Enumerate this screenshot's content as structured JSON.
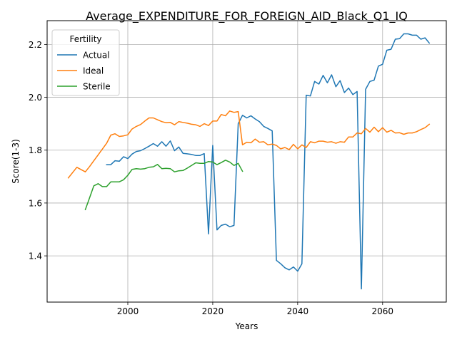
{
  "chart_data": {
    "type": "line",
    "title": "Average_EXPENDITURE_FOR_FOREIGN_AID_Black_Q1_IQ",
    "xlabel": "Years",
    "ylabel": "Score(1-3)",
    "xlim": [
      1981,
      2075
    ],
    "ylim": [
      1.225,
      2.29
    ],
    "xticks": [
      2000,
      2020,
      2040,
      2060
    ],
    "yticks": [
      1.4,
      1.6,
      1.8,
      2.0,
      2.2
    ],
    "grid": true,
    "legend": {
      "title": "Fertility",
      "placement": "top-left"
    },
    "series": [
      {
        "name": "Actual",
        "color": "#1f77b4",
        "points": [
          [
            1995,
            1.745
          ],
          [
            1996,
            1.745
          ],
          [
            1997,
            1.76
          ],
          [
            1998,
            1.758
          ],
          [
            1999,
            1.775
          ],
          [
            2000,
            1.768
          ],
          [
            2001,
            1.785
          ],
          [
            2002,
            1.795
          ],
          [
            2003,
            1.798
          ],
          [
            2004,
            1.806
          ],
          [
            2005,
            1.815
          ],
          [
            2006,
            1.825
          ],
          [
            2007,
            1.815
          ],
          [
            2008,
            1.832
          ],
          [
            2009,
            1.815
          ],
          [
            2010,
            1.835
          ],
          [
            2011,
            1.798
          ],
          [
            2012,
            1.812
          ],
          [
            2013,
            1.788
          ],
          [
            2014,
            1.786
          ],
          [
            2015,
            1.784
          ],
          [
            2016,
            1.78
          ],
          [
            2017,
            1.78
          ],
          [
            2018,
            1.787
          ],
          [
            2019,
            1.483
          ],
          [
            2020,
            1.818
          ],
          [
            2021,
            1.498
          ],
          [
            2022,
            1.515
          ],
          [
            2023,
            1.52
          ],
          [
            2024,
            1.51
          ],
          [
            2025,
            1.515
          ],
          [
            2026,
            1.9
          ],
          [
            2027,
            1.932
          ],
          [
            2028,
            1.922
          ],
          [
            2029,
            1.93
          ],
          [
            2030,
            1.918
          ],
          [
            2031,
            1.908
          ],
          [
            2032,
            1.89
          ],
          [
            2033,
            1.882
          ],
          [
            2034,
            1.873
          ],
          [
            2035,
            1.383
          ],
          [
            2036,
            1.37
          ],
          [
            2037,
            1.355
          ],
          [
            2038,
            1.347
          ],
          [
            2039,
            1.358
          ],
          [
            2040,
            1.342
          ],
          [
            2041,
            1.37
          ],
          [
            2042,
            2.008
          ],
          [
            2043,
            2.005
          ],
          [
            2044,
            2.06
          ],
          [
            2045,
            2.05
          ],
          [
            2046,
            2.083
          ],
          [
            2047,
            2.055
          ],
          [
            2048,
            2.085
          ],
          [
            2049,
            2.04
          ],
          [
            2050,
            2.063
          ],
          [
            2051,
            2.018
          ],
          [
            2052,
            2.035
          ],
          [
            2053,
            2.01
          ],
          [
            2054,
            2.022
          ],
          [
            2055,
            1.275
          ],
          [
            2056,
            2.03
          ],
          [
            2057,
            2.06
          ],
          [
            2058,
            2.065
          ],
          [
            2059,
            2.118
          ],
          [
            2060,
            2.125
          ],
          [
            2061,
            2.178
          ],
          [
            2062,
            2.182
          ],
          [
            2063,
            2.22
          ],
          [
            2064,
            2.222
          ],
          [
            2065,
            2.24
          ],
          [
            2066,
            2.24
          ],
          [
            2067,
            2.235
          ],
          [
            2068,
            2.235
          ],
          [
            2069,
            2.22
          ],
          [
            2070,
            2.225
          ],
          [
            2071,
            2.205
          ]
        ]
      },
      {
        "name": "Ideal",
        "color": "#ff7f0e",
        "points": [
          [
            1986,
            1.695
          ],
          [
            1988,
            1.735
          ],
          [
            1990,
            1.718
          ],
          [
            1991,
            1.738
          ],
          [
            1992,
            1.76
          ],
          [
            1993,
            1.782
          ],
          [
            1994,
            1.804
          ],
          [
            1995,
            1.826
          ],
          [
            1996,
            1.857
          ],
          [
            1997,
            1.862
          ],
          [
            1998,
            1.852
          ],
          [
            1999,
            1.854
          ],
          [
            2000,
            1.858
          ],
          [
            2001,
            1.88
          ],
          [
            2002,
            1.89
          ],
          [
            2003,
            1.897
          ],
          [
            2004,
            1.91
          ],
          [
            2005,
            1.922
          ],
          [
            2006,
            1.922
          ],
          [
            2007,
            1.915
          ],
          [
            2008,
            1.908
          ],
          [
            2009,
            1.904
          ],
          [
            2010,
            1.905
          ],
          [
            2011,
            1.896
          ],
          [
            2012,
            1.908
          ],
          [
            2013,
            1.905
          ],
          [
            2014,
            1.902
          ],
          [
            2015,
            1.898
          ],
          [
            2016,
            1.896
          ],
          [
            2017,
            1.89
          ],
          [
            2018,
            1.9
          ],
          [
            2019,
            1.893
          ],
          [
            2020,
            1.91
          ],
          [
            2021,
            1.91
          ],
          [
            2022,
            1.935
          ],
          [
            2023,
            1.93
          ],
          [
            2024,
            1.948
          ],
          [
            2025,
            1.943
          ],
          [
            2026,
            1.946
          ],
          [
            2027,
            1.82
          ],
          [
            2028,
            1.83
          ],
          [
            2029,
            1.828
          ],
          [
            2030,
            1.842
          ],
          [
            2031,
            1.83
          ],
          [
            2032,
            1.832
          ],
          [
            2033,
            1.82
          ],
          [
            2034,
            1.823
          ],
          [
            2035,
            1.818
          ],
          [
            2036,
            1.805
          ],
          [
            2037,
            1.81
          ],
          [
            2038,
            1.802
          ],
          [
            2039,
            1.822
          ],
          [
            2040,
            1.805
          ],
          [
            2041,
            1.82
          ],
          [
            2042,
            1.81
          ],
          [
            2043,
            1.832
          ],
          [
            2044,
            1.828
          ],
          [
            2045,
            1.834
          ],
          [
            2046,
            1.834
          ],
          [
            2047,
            1.83
          ],
          [
            2048,
            1.832
          ],
          [
            2049,
            1.826
          ],
          [
            2050,
            1.832
          ],
          [
            2051,
            1.83
          ],
          [
            2052,
            1.85
          ],
          [
            2053,
            1.85
          ],
          [
            2054,
            1.865
          ],
          [
            2055,
            1.862
          ],
          [
            2056,
            1.882
          ],
          [
            2057,
            1.868
          ],
          [
            2058,
            1.887
          ],
          [
            2059,
            1.87
          ],
          [
            2060,
            1.885
          ],
          [
            2061,
            1.868
          ],
          [
            2062,
            1.875
          ],
          [
            2063,
            1.865
          ],
          [
            2064,
            1.866
          ],
          [
            2065,
            1.86
          ],
          [
            2066,
            1.865
          ],
          [
            2067,
            1.865
          ],
          [
            2068,
            1.87
          ],
          [
            2069,
            1.878
          ],
          [
            2070,
            1.885
          ],
          [
            2071,
            1.898
          ]
        ]
      },
      {
        "name": "Sterile",
        "color": "#2ca02c",
        "points": [
          [
            1990,
            1.575
          ],
          [
            1991,
            1.62
          ],
          [
            1992,
            1.665
          ],
          [
            1993,
            1.673
          ],
          [
            1994,
            1.662
          ],
          [
            1995,
            1.662
          ],
          [
            1996,
            1.68
          ],
          [
            1997,
            1.68
          ],
          [
            1998,
            1.68
          ],
          [
            1999,
            1.688
          ],
          [
            2000,
            1.705
          ],
          [
            2001,
            1.727
          ],
          [
            2002,
            1.73
          ],
          [
            2003,
            1.728
          ],
          [
            2004,
            1.73
          ],
          [
            2005,
            1.735
          ],
          [
            2006,
            1.737
          ],
          [
            2007,
            1.746
          ],
          [
            2008,
            1.73
          ],
          [
            2009,
            1.731
          ],
          [
            2010,
            1.73
          ],
          [
            2011,
            1.718
          ],
          [
            2012,
            1.722
          ],
          [
            2013,
            1.723
          ],
          [
            2014,
            1.732
          ],
          [
            2015,
            1.742
          ],
          [
            2016,
            1.752
          ],
          [
            2017,
            1.75
          ],
          [
            2018,
            1.75
          ],
          [
            2019,
            1.757
          ],
          [
            2020,
            1.755
          ],
          [
            2021,
            1.745
          ],
          [
            2022,
            1.753
          ],
          [
            2023,
            1.762
          ],
          [
            2024,
            1.755
          ],
          [
            2025,
            1.742
          ],
          [
            2026,
            1.75
          ],
          [
            2027,
            1.72
          ]
        ]
      }
    ]
  }
}
